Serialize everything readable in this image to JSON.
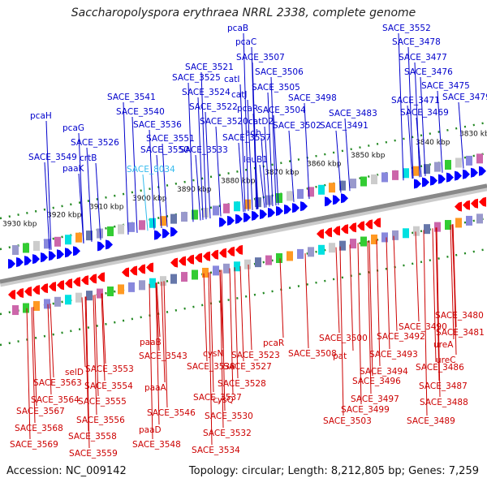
{
  "title": "Saccharopolyspora erythraea NRRL 2338, complete genome",
  "footer": {
    "accession": "Accession: NC_009142",
    "info": "Topology: circular; Length: 8,212,805 bp; Genes: 7,259"
  },
  "colors": {
    "forward_label": "#0000cc",
    "reverse_label": "#cc0000",
    "highlight_label": "#33bbee",
    "backbone": "#888888",
    "forward_gene": "#0000ff",
    "reverse_gene": "#ff0000",
    "tick": "#228822"
  },
  "kbp_ticks": [
    "3930 kbp",
    "3920 kbp",
    "3910 kbp",
    "3900 kbp",
    "3890 kbp",
    "3880 kbp",
    "3870 kbp",
    "3860 kbp",
    "3850 kbp",
    "3840 kbp",
    "3830 kbp"
  ],
  "forward_labels": [
    "pcaB",
    "pcaC",
    "SACE_3521",
    "SACE_3507",
    "SACE_3525",
    "catI",
    "SACE_3506",
    "SACE_3524",
    "catJ",
    "SACE_3505",
    "SACE_3541",
    "SACE_3522",
    "pcaR",
    "SACE_3504",
    "SACE_3540",
    "SACE_3520",
    "catD2",
    "SACE_3502",
    "SACE_3498",
    "SACE_3536",
    "pcaH",
    "SACE_3557",
    "adh",
    "pcaG",
    "SACE_3551",
    "SACE_3533",
    "SACE_3526",
    "SACE_3550",
    "crtB",
    "SACE_3549",
    "SACE_8034",
    "paaK",
    "SACE_3552",
    "SACE_3478",
    "SACE_3477",
    "SACE_3476",
    "SACE_3475",
    "SACE_3471",
    "SACE_3479",
    "SACE_3469",
    "SACE_3483",
    "SACE_3491",
    "leuB1"
  ],
  "reverse_labels": [
    "SACE_3480",
    "SACE_3481",
    "SACE_3490",
    "SACE_3492",
    "ureA",
    "SACE_3500",
    "SACE_3493",
    "SACE_3508",
    "pat",
    "ureC",
    "SACE_3486",
    "SACE_3494",
    "SACE_3496",
    "SACE_3487",
    "SACE_3497",
    "SACE_3488",
    "SACE_3499",
    "SACE_3489",
    "SACE_3503",
    "pcaR",
    "SACE_3523",
    "cysN",
    "SACE_3527",
    "SACE_3538",
    "SACE_3528",
    "cysQ",
    "SACE_3537",
    "SACE_3530",
    "SACE_3532",
    "SACE_3534",
    "paaB",
    "SACE_3543",
    "paaA",
    "SACE_3546",
    "paaD",
    "SACE_3548",
    "selD",
    "SACE_3553",
    "SACE_3554",
    "SACE_3555",
    "SACE_3556",
    "SACE_3558",
    "SACE_3559",
    "SACE_3563",
    "SACE_3564",
    "SACE_3567",
    "SACE_3568",
    "SACE_3569"
  ]
}
